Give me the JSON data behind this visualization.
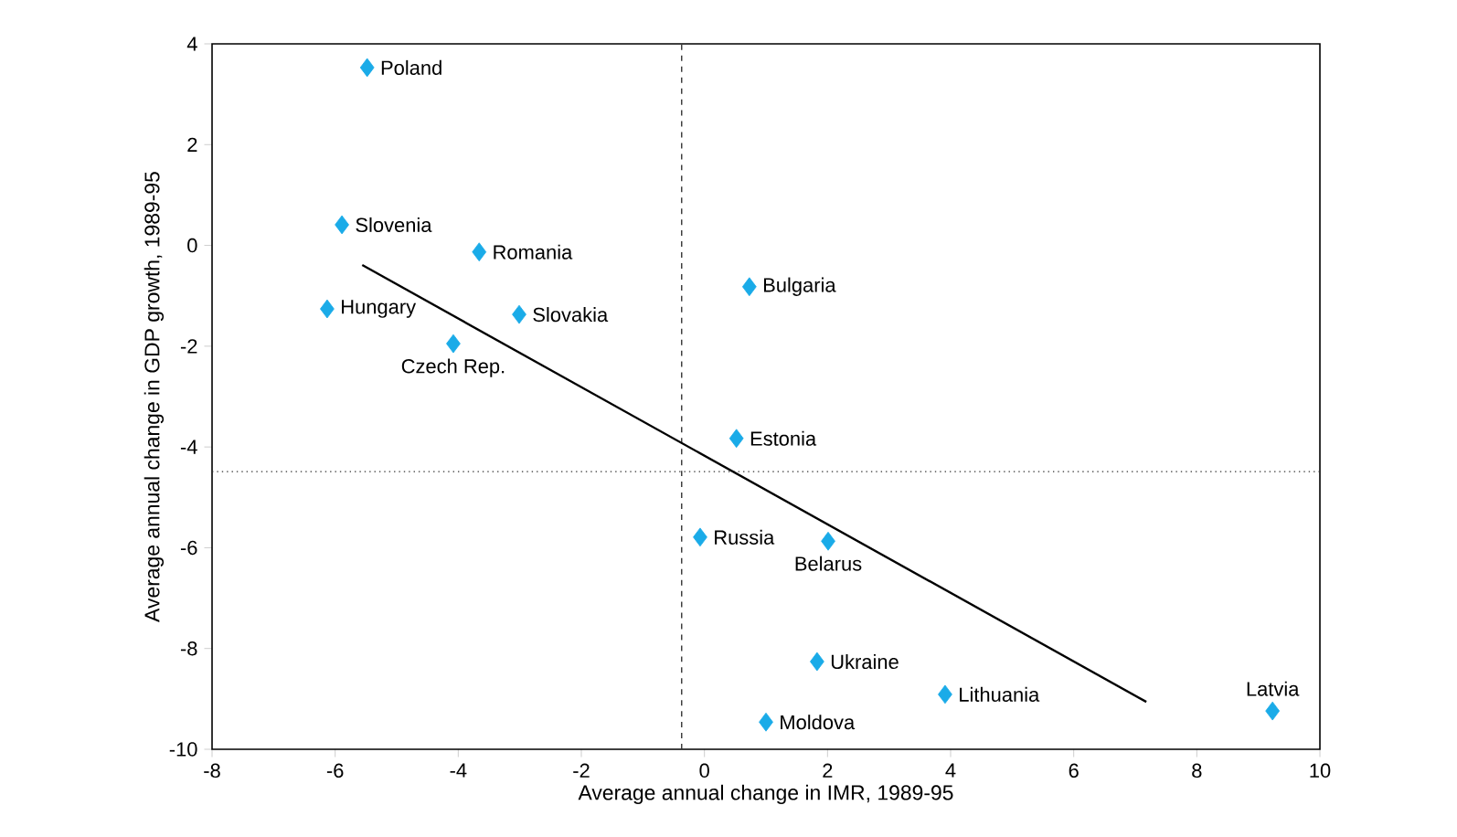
{
  "chart_data": {
    "type": "scatter",
    "xlabel": "Average annual change in IMR, 1989-95",
    "ylabel": "Average annual change in GDP growth, 1989-95",
    "xlim": [
      -8,
      10
    ],
    "ylim": [
      -10,
      4
    ],
    "xticks": [
      -8,
      -6,
      -4,
      -2,
      0,
      2,
      4,
      6,
      8,
      10
    ],
    "yticks": [
      -10,
      -8,
      -6,
      -4,
      -2,
      0,
      2,
      4
    ],
    "marker": "diamond",
    "series": [
      {
        "color": "#1aabe8",
        "x": [
          -5.48,
          -5.89,
          -3.66,
          -6.13,
          -3.01,
          -4.08,
          0.73,
          0.52,
          -0.07,
          2.01,
          1.83,
          3.91,
          1.0,
          9.23
        ],
        "values": [
          3.53,
          0.41,
          -0.13,
          -1.26,
          -1.37,
          -1.95,
          -0.82,
          -3.83,
          -5.79,
          -5.87,
          -8.26,
          -8.91,
          -9.46,
          -9.24
        ]
      },
      {
        "type": "line",
        "color": "#000000",
        "marker": "none",
        "x": [
          -5.56,
          7.18
        ],
        "values": [
          -0.39,
          -9.06
        ]
      }
    ],
    "ref_lines": [
      {
        "axis": "x",
        "value": -0.37,
        "label": null,
        "line_style": "dashed",
        "color": "#333333"
      },
      {
        "axis": "y",
        "value": -4.49,
        "label": null,
        "line_style": "dotted",
        "color": "#333333"
      }
    ],
    "annotations": [
      {
        "text": "Poland",
        "x": -5.48,
        "y": 3.53
      },
      {
        "text": "Slovenia",
        "x": -5.89,
        "y": 0.41
      },
      {
        "text": "Romania",
        "x": -3.66,
        "y": -0.13
      },
      {
        "text": "Hungary",
        "x": -6.13,
        "y": -1.26
      },
      {
        "text": "Slovakia",
        "x": -3.01,
        "y": -1.37
      },
      {
        "text": "Czech Rep.",
        "x": -4.08,
        "y": -1.95
      },
      {
        "text": "Bulgaria",
        "x": 0.73,
        "y": -0.82
      },
      {
        "text": "Estonia",
        "x": 0.52,
        "y": -3.83
      },
      {
        "text": "Russia",
        "x": -0.07,
        "y": -5.79
      },
      {
        "text": "Belarus",
        "x": 2.01,
        "y": -5.87
      },
      {
        "text": "Ukraine",
        "x": 1.83,
        "y": -8.26
      },
      {
        "text": "Lithuania",
        "x": 3.91,
        "y": -8.91
      },
      {
        "text": "Moldova",
        "x": 1.0,
        "y": -9.46
      },
      {
        "text": "Latvia",
        "x": 9.23,
        "y": -9.24
      }
    ]
  }
}
